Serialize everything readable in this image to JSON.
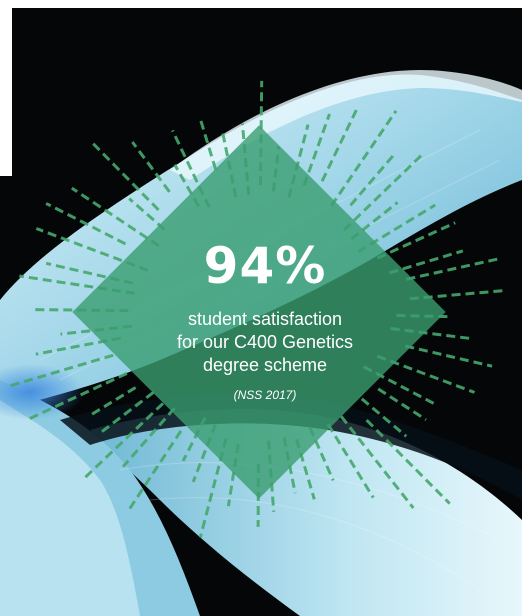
{
  "stat": {
    "value": "94%",
    "description_lines": [
      "student satisfaction",
      "for our C400 Genetics",
      "degree scheme"
    ],
    "source": "(NSS 2017)"
  },
  "colors": {
    "accent_green": "#3a9e70",
    "rays_green": "#46a86d",
    "leaf_light": "#bfe6f2",
    "background_dark": "#050608"
  },
  "icons": [
    "sunburst-rays"
  ]
}
